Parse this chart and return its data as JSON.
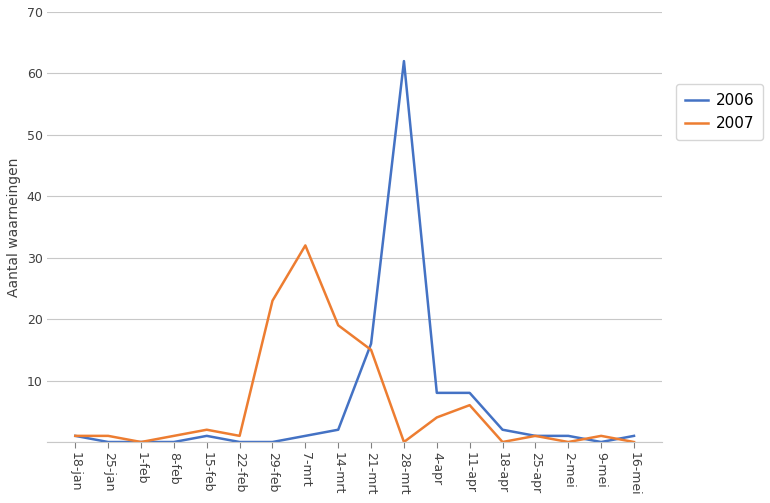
{
  "x_labels": [
    "18-jan",
    "25-jan",
    "1-feb",
    "8-feb",
    "15-feb",
    "22-feb",
    "29-feb",
    "7-mrt",
    "14-mrt",
    "21-mrt",
    "28-mrt",
    "4-apr",
    "11-apr",
    "18-apr",
    "25-apr",
    "2-mei",
    "9-mei",
    "16-mei"
  ],
  "values_2006": [
    1,
    0,
    0,
    0,
    1,
    0,
    0,
    1,
    2,
    16,
    62,
    8,
    8,
    2,
    1,
    1,
    0,
    1
  ],
  "values_2007": [
    1,
    1,
    0,
    1,
    2,
    1,
    23,
    32,
    19,
    15,
    0,
    4,
    6,
    0,
    1,
    0,
    1,
    0
  ],
  "color_2006": "#4472C4",
  "color_2007": "#ED7D31",
  "ylabel": "Aantal waarneingen",
  "ylim": [
    0,
    70
  ],
  "yticks": [
    0,
    10,
    20,
    30,
    40,
    50,
    60,
    70
  ],
  "legend_2006": "2006",
  "legend_2007": "2007",
  "background_color": "#ffffff",
  "grid_color": "#c8c8c8",
  "line_width": 1.8
}
